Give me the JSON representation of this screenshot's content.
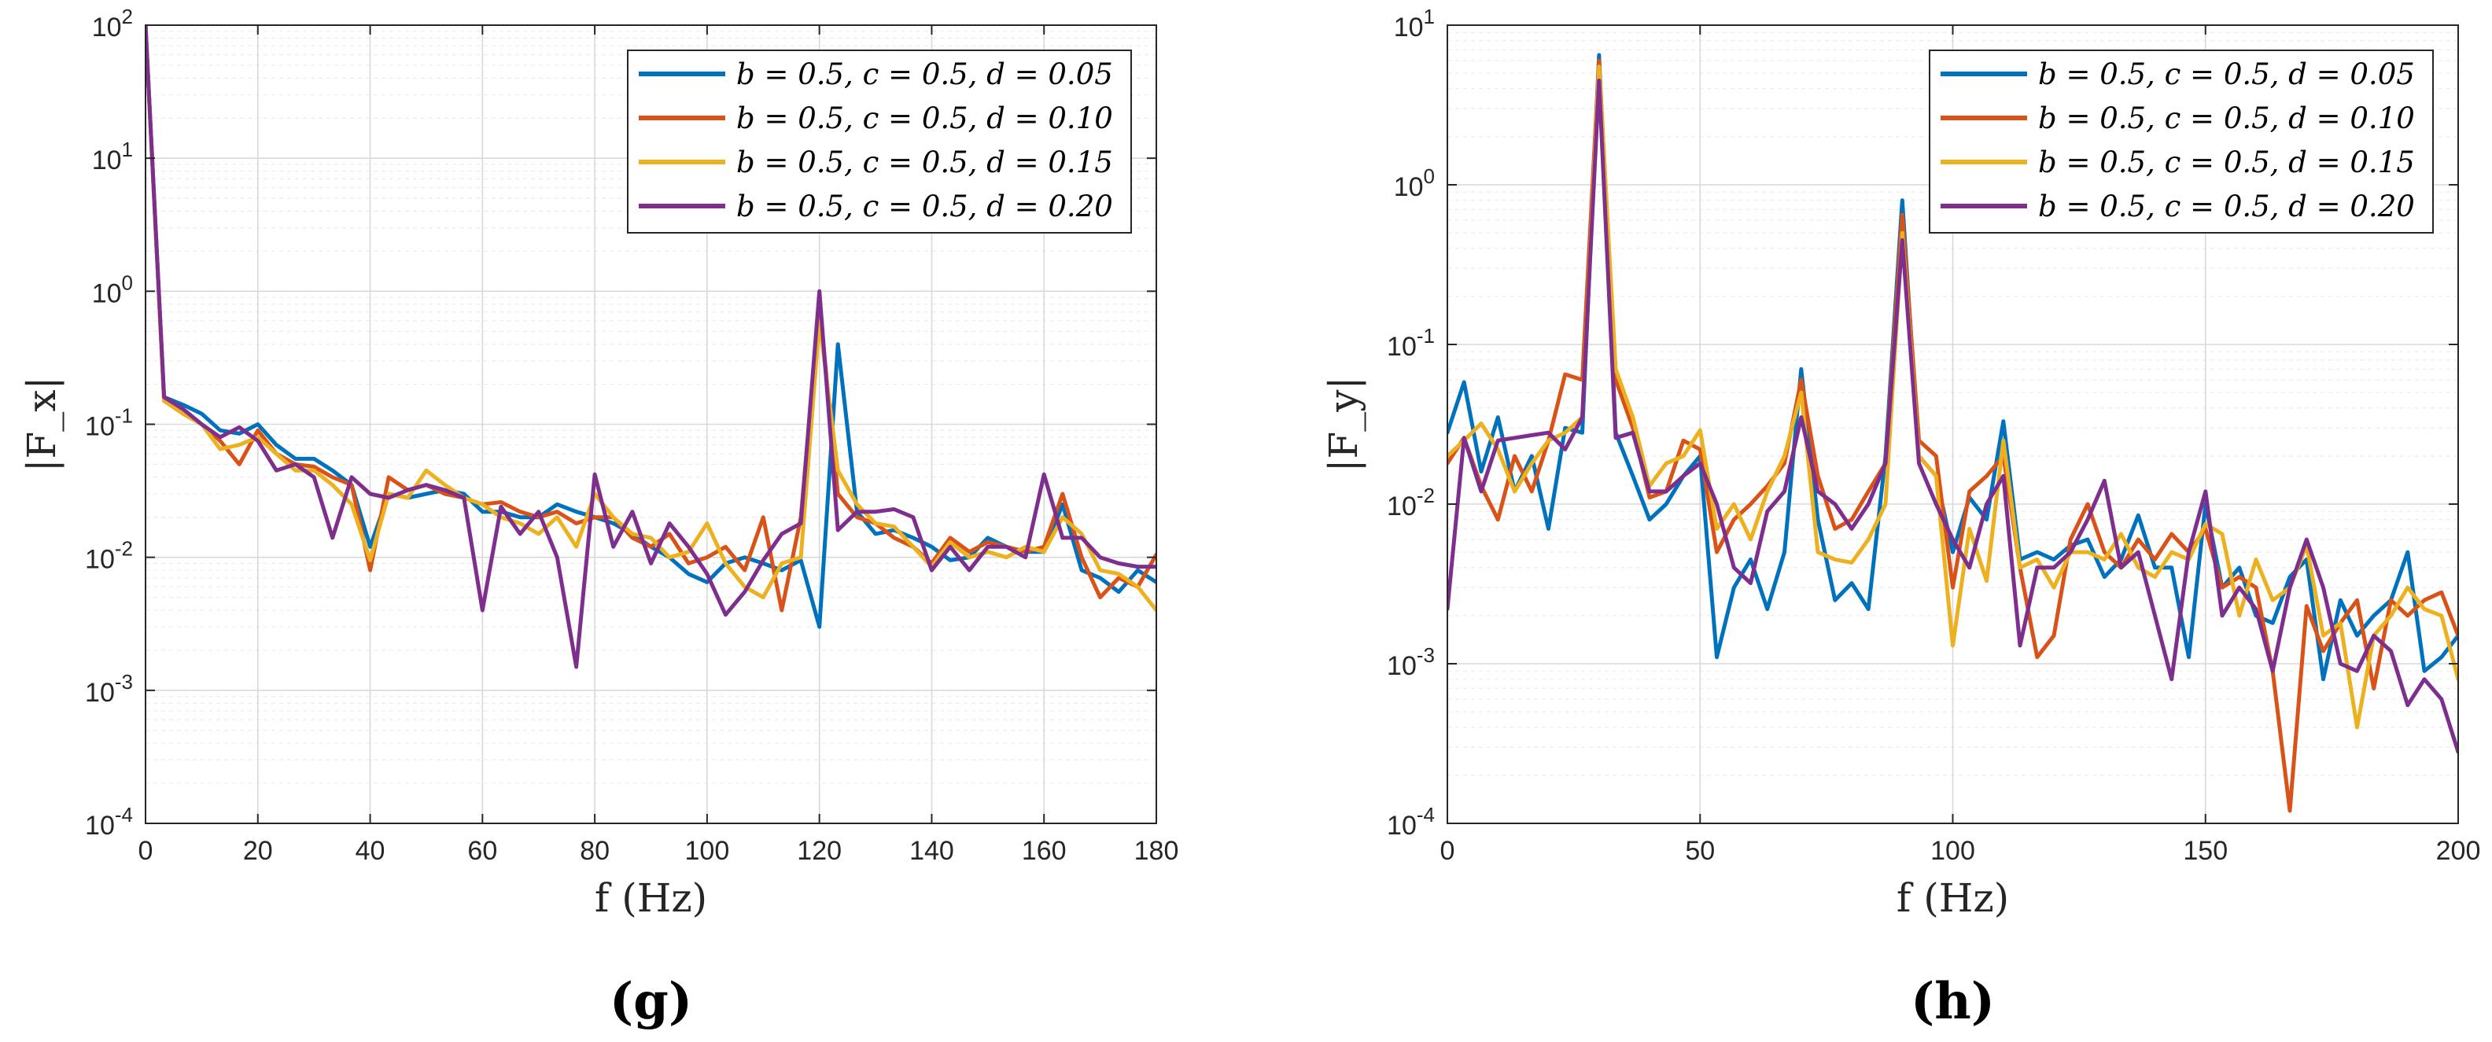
{
  "chart_data": [
    {
      "type": "line",
      "panel_label": "(g)",
      "xlabel": "f (Hz)",
      "ylabel": "|F_x|",
      "yscale": "log",
      "xlim": [
        0,
        180
      ],
      "ylim": [
        0.0001,
        100
      ],
      "xticks": [
        0,
        20,
        40,
        60,
        80,
        100,
        120,
        140,
        160,
        180
      ],
      "yticks": [
        -4,
        -3,
        -2,
        -1,
        0,
        1,
        2
      ],
      "ytick_base": "10",
      "grid": true,
      "legend_position": "top-right",
      "series": [
        {
          "name": "b = 0.5,  c = 0.5,  d = 0.05",
          "color": "#0072BD",
          "x": [
            0,
            3.3,
            6.7,
            10,
            13.3,
            16.7,
            20,
            23.3,
            26.7,
            30,
            33.3,
            36.7,
            40,
            43.3,
            46.7,
            50,
            53.3,
            56.7,
            60,
            63.3,
            66.7,
            70,
            73.3,
            76.7,
            80,
            83.3,
            86.7,
            90,
            93.3,
            96.7,
            100,
            103.3,
            106.7,
            110,
            113.3,
            116.7,
            120,
            123.3,
            126.7,
            130,
            133.3,
            136.7,
            140,
            143.3,
            146.7,
            150,
            153.3,
            156.7,
            160,
            163.3,
            166.7,
            170,
            173.3,
            176.7,
            180
          ],
          "y": [
            100,
            0.16,
            0.14,
            0.12,
            0.09,
            0.085,
            0.1,
            0.07,
            0.055,
            0.055,
            0.045,
            0.035,
            0.012,
            0.03,
            0.028,
            0.03,
            0.032,
            0.03,
            0.022,
            0.022,
            0.02,
            0.02,
            0.025,
            0.022,
            0.02,
            0.018,
            0.015,
            0.012,
            0.01,
            0.0075,
            0.0065,
            0.009,
            0.01,
            0.009,
            0.008,
            0.0095,
            0.003,
            0.4,
            0.022,
            0.015,
            0.016,
            0.014,
            0.012,
            0.0095,
            0.01,
            0.014,
            0.012,
            0.011,
            0.011,
            0.025,
            0.008,
            0.007,
            0.0055,
            0.008,
            0.0065
          ]
        },
        {
          "name": "b = 0.5,  c = 0.5,  d = 0.10",
          "color": "#D95319",
          "x": [
            0,
            3.3,
            6.7,
            10,
            13.3,
            16.7,
            20,
            23.3,
            26.7,
            30,
            33.3,
            36.7,
            40,
            43.3,
            46.7,
            50,
            53.3,
            56.7,
            60,
            63.3,
            66.7,
            70,
            73.3,
            76.7,
            80,
            83.3,
            86.7,
            90,
            93.3,
            96.7,
            100,
            103.3,
            106.7,
            110,
            113.3,
            116.7,
            120,
            123.3,
            126.7,
            130,
            133.3,
            136.7,
            140,
            143.3,
            146.7,
            150,
            153.3,
            156.7,
            160,
            163.3,
            166.7,
            170,
            173.3,
            176.7,
            180
          ],
          "y": [
            100,
            0.15,
            0.12,
            0.1,
            0.075,
            0.05,
            0.09,
            0.06,
            0.05,
            0.048,
            0.04,
            0.035,
            0.008,
            0.04,
            0.032,
            0.035,
            0.03,
            0.028,
            0.025,
            0.026,
            0.022,
            0.02,
            0.022,
            0.018,
            0.02,
            0.02,
            0.014,
            0.012,
            0.015,
            0.009,
            0.01,
            0.012,
            0.008,
            0.02,
            0.004,
            0.02,
            0.8,
            0.03,
            0.02,
            0.018,
            0.014,
            0.012,
            0.009,
            0.014,
            0.011,
            0.013,
            0.012,
            0.011,
            0.012,
            0.03,
            0.01,
            0.005,
            0.007,
            0.006,
            0.0105
          ]
        },
        {
          "name": "b = 0.5,  c = 0.5,  d = 0.15",
          "color": "#EDB120",
          "x": [
            0,
            3.3,
            6.7,
            10,
            13.3,
            16.7,
            20,
            23.3,
            26.7,
            30,
            33.3,
            36.7,
            40,
            43.3,
            46.7,
            50,
            53.3,
            56.7,
            60,
            63.3,
            66.7,
            70,
            73.3,
            76.7,
            80,
            83.3,
            86.7,
            90,
            93.3,
            96.7,
            100,
            103.3,
            106.7,
            110,
            113.3,
            116.7,
            120,
            123.3,
            126.7,
            130,
            133.3,
            136.7,
            140,
            143.3,
            146.7,
            150,
            153.3,
            156.7,
            160,
            163.3,
            166.7,
            170,
            173.3,
            176.7,
            180
          ],
          "y": [
            100,
            0.15,
            0.12,
            0.1,
            0.065,
            0.07,
            0.08,
            0.06,
            0.045,
            0.045,
            0.035,
            0.025,
            0.0095,
            0.03,
            0.028,
            0.045,
            0.035,
            0.028,
            0.025,
            0.02,
            0.018,
            0.015,
            0.02,
            0.012,
            0.03,
            0.02,
            0.015,
            0.014,
            0.01,
            0.011,
            0.018,
            0.009,
            0.006,
            0.005,
            0.009,
            0.01,
            0.6,
            0.045,
            0.025,
            0.018,
            0.017,
            0.012,
            0.0085,
            0.013,
            0.01,
            0.011,
            0.01,
            0.012,
            0.011,
            0.02,
            0.015,
            0.008,
            0.0075,
            0.006,
            0.004
          ]
        },
        {
          "name": "b = 0.5,  c = 0.5,  d = 0.20",
          "color": "#7E2F8E",
          "x": [
            0,
            3.3,
            6.7,
            10,
            13.3,
            16.7,
            20,
            23.3,
            26.7,
            30,
            33.3,
            36.7,
            40,
            43.3,
            46.7,
            50,
            53.3,
            56.7,
            60,
            63.3,
            66.7,
            70,
            73.3,
            76.7,
            80,
            83.3,
            86.7,
            90,
            93.3,
            96.7,
            100,
            103.3,
            106.7,
            110,
            113.3,
            116.7,
            120,
            123.3,
            126.7,
            130,
            133.3,
            136.7,
            140,
            143.3,
            146.7,
            150,
            153.3,
            156.7,
            160,
            163.3,
            166.7,
            170,
            173.3,
            176.7,
            180
          ],
          "y": [
            100,
            0.16,
            0.13,
            0.1,
            0.08,
            0.095,
            0.075,
            0.045,
            0.05,
            0.04,
            0.014,
            0.04,
            0.03,
            0.028,
            0.032,
            0.035,
            0.032,
            0.028,
            0.004,
            0.024,
            0.015,
            0.022,
            0.01,
            0.0015,
            0.042,
            0.012,
            0.022,
            0.009,
            0.018,
            0.012,
            0.0075,
            0.0037,
            0.0055,
            0.0095,
            0.015,
            0.018,
            1.0,
            0.016,
            0.022,
            0.022,
            0.023,
            0.02,
            0.008,
            0.012,
            0.008,
            0.012,
            0.012,
            0.01,
            0.042,
            0.014,
            0.014,
            0.01,
            0.009,
            0.0085,
            0.0085
          ]
        }
      ]
    },
    {
      "type": "line",
      "panel_label": "(h)",
      "xlabel": "f (Hz)",
      "ylabel": "|F_y|",
      "yscale": "log",
      "xlim": [
        0,
        200
      ],
      "ylim": [
        0.0001,
        10
      ],
      "xticks": [
        0,
        50,
        100,
        150,
        200
      ],
      "yticks": [
        -4,
        -3,
        -2,
        -1,
        0,
        1
      ],
      "ytick_base": "10",
      "grid": true,
      "legend_position": "top-right",
      "series": [
        {
          "name": "b = 0.5,  c = 0.5,  d = 0.05",
          "color": "#0072BD",
          "x": [
            0,
            3.3,
            6.7,
            10,
            13.3,
            16.7,
            20,
            23.3,
            26.7,
            30,
            33.3,
            36.7,
            40,
            43.3,
            46.7,
            50,
            53.3,
            56.7,
            60,
            63.3,
            66.7,
            70,
            73.3,
            76.7,
            80,
            83.3,
            86.7,
            90,
            93.3,
            96.7,
            100,
            103.3,
            106.7,
            110,
            113.3,
            116.7,
            120,
            123.3,
            126.7,
            130,
            133.3,
            136.7,
            140,
            143.3,
            146.7,
            150,
            153.3,
            156.7,
            160,
            163.3,
            166.7,
            170,
            173.3,
            176.7,
            180,
            183.3,
            186.7,
            190,
            193.3,
            196.7,
            200
          ],
          "y": [
            0.028,
            0.058,
            0.016,
            0.035,
            0.012,
            0.02,
            0.007,
            0.03,
            0.028,
            6.5,
            0.028,
            0.015,
            0.008,
            0.01,
            0.015,
            0.02,
            0.0011,
            0.003,
            0.0045,
            0.0022,
            0.005,
            0.07,
            0.008,
            0.0025,
            0.0032,
            0.0022,
            0.02,
            0.8,
            0.02,
            0.015,
            0.005,
            0.011,
            0.008,
            0.033,
            0.0045,
            0.005,
            0.0045,
            0.0055,
            0.006,
            0.0035,
            0.0045,
            0.0085,
            0.004,
            0.004,
            0.0011,
            0.01,
            0.003,
            0.004,
            0.002,
            0.0018,
            0.0035,
            0.0045,
            0.0008,
            0.0025,
            0.0015,
            0.002,
            0.0025,
            0.005,
            0.0009,
            0.0011,
            0.0015
          ]
        },
        {
          "name": "b = 0.5,  c = 0.5,  d = 0.10",
          "color": "#D95319",
          "x": [
            0,
            3.3,
            6.7,
            10,
            13.3,
            16.7,
            20,
            23.3,
            26.7,
            30,
            33.3,
            36.7,
            40,
            43.3,
            46.7,
            50,
            53.3,
            56.7,
            60,
            63.3,
            66.7,
            70,
            73.3,
            76.7,
            80,
            83.3,
            86.7,
            90,
            93.3,
            96.7,
            100,
            103.3,
            106.7,
            110,
            113.3,
            116.7,
            120,
            123.3,
            126.7,
            130,
            133.3,
            136.7,
            140,
            143.3,
            146.7,
            150,
            153.3,
            156.7,
            160,
            163.3,
            166.7,
            170,
            173.3,
            176.7,
            180,
            183.3,
            186.7,
            190,
            193.3,
            196.7,
            200
          ],
          "y": [
            0.018,
            0.026,
            0.013,
            0.008,
            0.02,
            0.012,
            0.025,
            0.065,
            0.06,
            6.0,
            0.06,
            0.03,
            0.011,
            0.012,
            0.025,
            0.022,
            0.005,
            0.008,
            0.01,
            0.013,
            0.018,
            0.06,
            0.015,
            0.007,
            0.008,
            0.012,
            0.018,
            0.65,
            0.025,
            0.02,
            0.003,
            0.012,
            0.015,
            0.02,
            0.004,
            0.0011,
            0.0015,
            0.006,
            0.01,
            0.005,
            0.004,
            0.006,
            0.0045,
            0.0065,
            0.005,
            0.007,
            0.003,
            0.0035,
            0.003,
            0.0009,
            0.00012,
            0.0023,
            0.0012,
            0.0018,
            0.0025,
            0.0007,
            0.0025,
            0.002,
            0.0025,
            0.0028,
            0.0015
          ]
        },
        {
          "name": "b = 0.5,  c = 0.5,  d = 0.15",
          "color": "#EDB120",
          "x": [
            0,
            3.3,
            6.7,
            10,
            13.3,
            16.7,
            20,
            23.3,
            26.7,
            30,
            33.3,
            36.7,
            40,
            43.3,
            46.7,
            50,
            53.3,
            56.7,
            60,
            63.3,
            66.7,
            70,
            73.3,
            76.7,
            80,
            83.3,
            86.7,
            90,
            93.3,
            96.7,
            100,
            103.3,
            106.7,
            110,
            113.3,
            116.7,
            120,
            123.3,
            126.7,
            130,
            133.3,
            136.7,
            140,
            143.3,
            146.7,
            150,
            153.3,
            156.7,
            160,
            163.3,
            166.7,
            170,
            173.3,
            176.7,
            180,
            183.3,
            186.7,
            190,
            193.3,
            196.7,
            200
          ],
          "y": [
            0.02,
            0.025,
            0.032,
            0.022,
            0.012,
            0.018,
            0.025,
            0.028,
            0.035,
            5.5,
            0.07,
            0.035,
            0.013,
            0.018,
            0.02,
            0.029,
            0.007,
            0.01,
            0.006,
            0.012,
            0.02,
            0.05,
            0.005,
            0.0045,
            0.0043,
            0.006,
            0.01,
            0.5,
            0.02,
            0.015,
            0.0013,
            0.007,
            0.0033,
            0.025,
            0.004,
            0.0045,
            0.003,
            0.005,
            0.005,
            0.0045,
            0.0065,
            0.004,
            0.0035,
            0.005,
            0.0045,
            0.0075,
            0.0065,
            0.002,
            0.0045,
            0.0025,
            0.003,
            0.0055,
            0.0015,
            0.0018,
            0.0004,
            0.0015,
            0.002,
            0.003,
            0.0022,
            0.002,
            0.0008
          ]
        },
        {
          "name": "b = 0.5,  c = 0.5,  d = 0.20",
          "color": "#7E2F8E",
          "x": [
            0,
            3.3,
            6.7,
            10,
            13.3,
            16.7,
            20,
            23.3,
            26.7,
            30,
            33.3,
            36.7,
            40,
            43.3,
            46.7,
            50,
            53.3,
            56.7,
            60,
            63.3,
            66.7,
            70,
            73.3,
            76.7,
            80,
            83.3,
            86.7,
            90,
            93.3,
            96.7,
            100,
            103.3,
            106.7,
            110,
            113.3,
            116.7,
            120,
            123.3,
            126.7,
            130,
            133.3,
            136.7,
            140,
            143.3,
            146.7,
            150,
            153.3,
            156.7,
            160,
            163.3,
            166.7,
            170,
            173.3,
            176.7,
            180,
            183.3,
            186.7,
            190,
            193.3,
            196.7,
            200
          ],
          "y": [
            0.0022,
            0.026,
            0.012,
            0.025,
            0.026,
            0.027,
            0.028,
            0.022,
            0.035,
            4.5,
            0.026,
            0.028,
            0.012,
            0.012,
            0.015,
            0.018,
            0.01,
            0.004,
            0.0032,
            0.009,
            0.012,
            0.035,
            0.012,
            0.01,
            0.007,
            0.01,
            0.018,
            0.45,
            0.018,
            0.01,
            0.006,
            0.004,
            0.01,
            0.015,
            0.0013,
            0.004,
            0.004,
            0.005,
            0.008,
            0.014,
            0.004,
            0.005,
            0.002,
            0.0008,
            0.005,
            0.012,
            0.002,
            0.003,
            0.0022,
            0.0009,
            0.003,
            0.006,
            0.003,
            0.001,
            0.0009,
            0.0015,
            0.0012,
            0.00055,
            0.0008,
            0.0006,
            0.00028
          ]
        }
      ]
    }
  ]
}
